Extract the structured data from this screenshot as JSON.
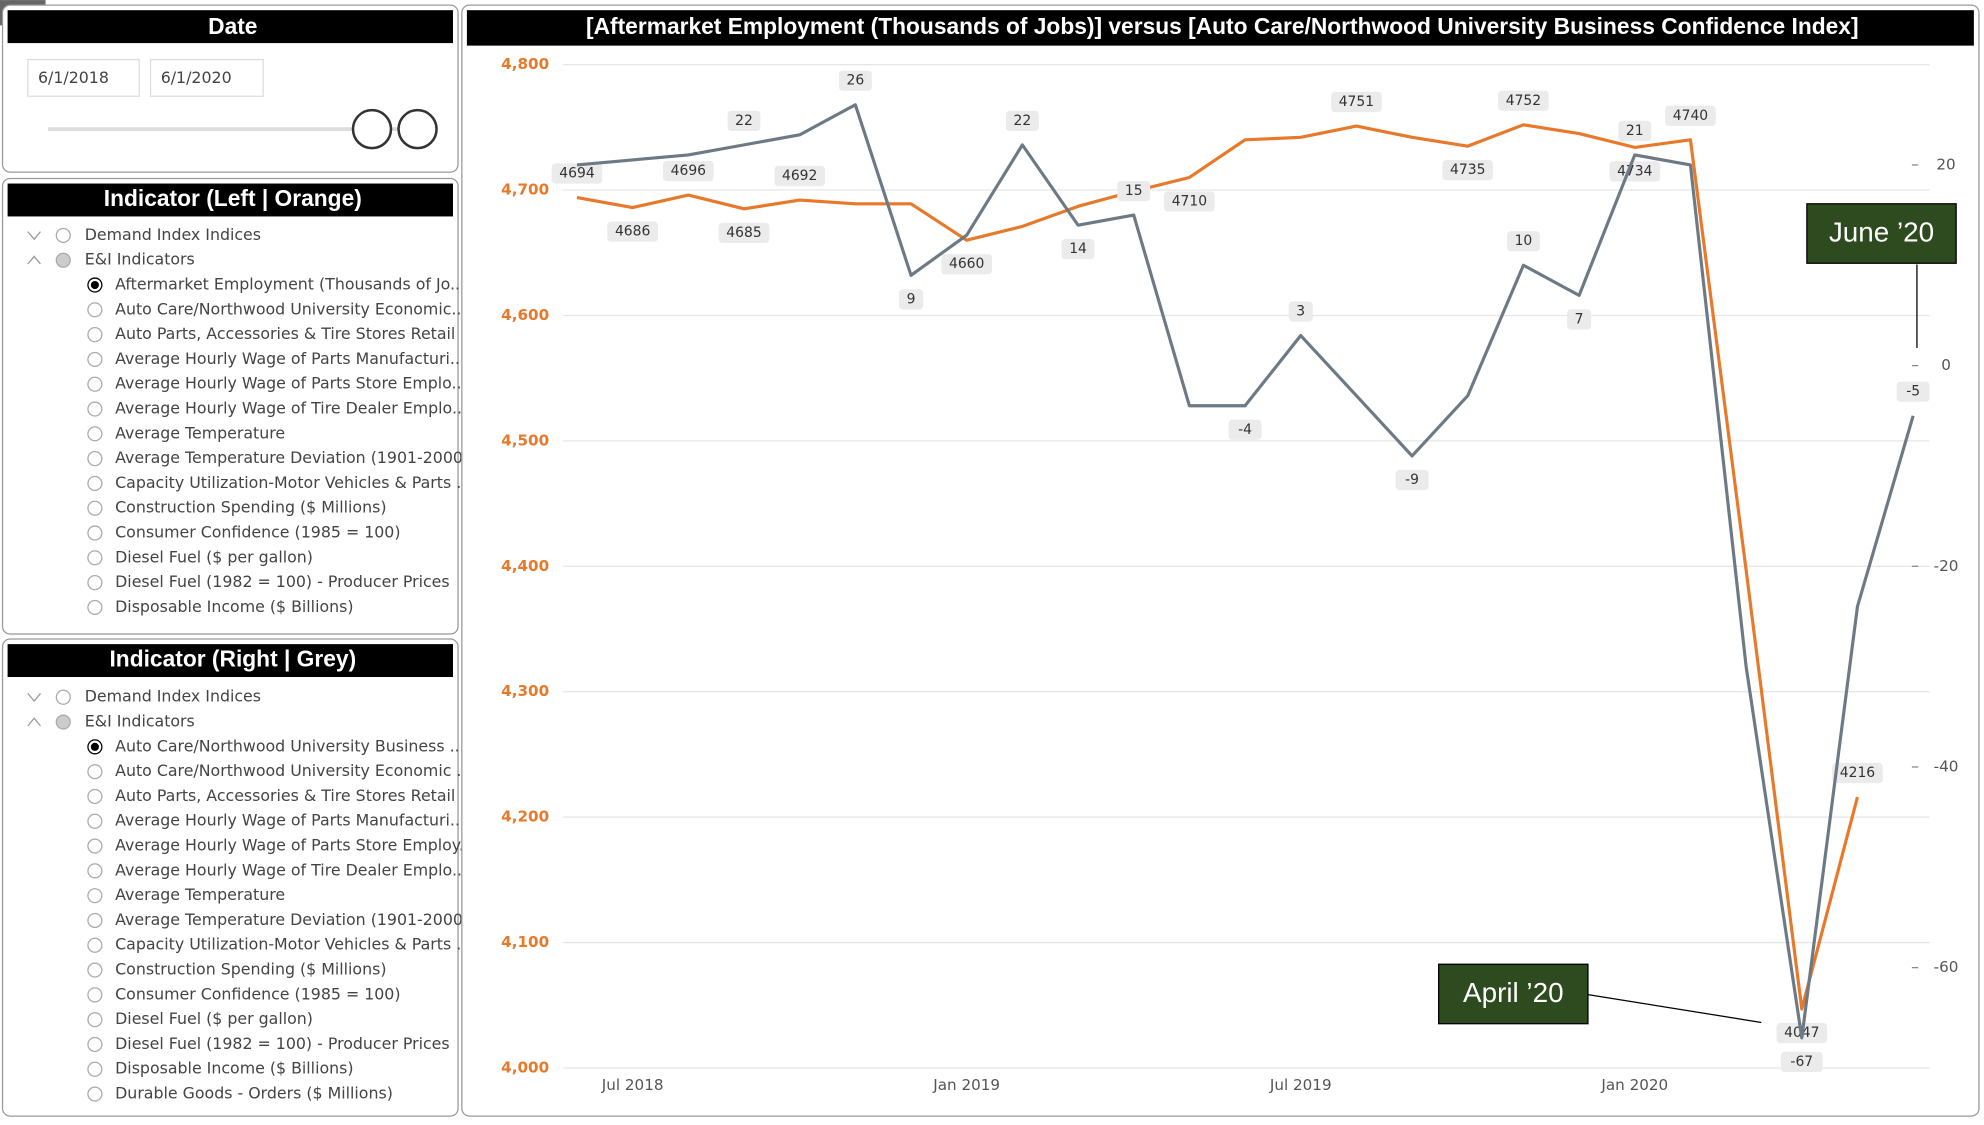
{
  "date_filter": {
    "title": "Date",
    "start": "6/1/2018",
    "end": "6/1/2020"
  },
  "left_panel": {
    "title": "Indicator (Left | Orange)",
    "groups": [
      "Demand Index Indices",
      "E&I Indicators"
    ],
    "selected": 0,
    "items": [
      "Aftermarket Employment (Thousands of Jo...",
      "Auto Care/Northwood University Economic...",
      "Auto Parts, Accessories & Tire Stores Retail ...",
      "Average Hourly Wage of Parts Manufacturi...",
      "Average Hourly Wage of Parts Store Emplo...",
      "Average Hourly Wage of Tire Dealer Emplo...",
      "Average Temperature",
      "Average Temperature Deviation (1901-2000...",
      "Capacity Utilization-Motor Vehicles & Parts ...",
      "Construction Spending ($ Millions)",
      "Consumer Confidence (1985 = 100)",
      "Diesel Fuel ($ per gallon)",
      "Diesel Fuel (1982 = 100) - Producer Prices",
      "Disposable Income ($ Billions)"
    ]
  },
  "right_panel": {
    "title": "Indicator (Right | Grey)",
    "groups": [
      "Demand Index Indices",
      "E&I Indicators"
    ],
    "selected": 0,
    "items": [
      "Auto Care/Northwood University Business ...",
      "Auto Care/Northwood University Economic ...",
      "Auto Parts, Accessories & Tire Stores Retail ...",
      "Average Hourly Wage of Parts Manufacturi...",
      "Average Hourly Wage of Parts Store Employ...",
      "Average Hourly Wage of Tire Dealer Emplo...",
      "Average Temperature",
      "Average Temperature Deviation (1901-2000...",
      "Capacity Utilization-Motor Vehicles & Parts ...",
      "Construction Spending ($ Millions)",
      "Consumer Confidence (1985 = 100)",
      "Diesel Fuel ($ per gallon)",
      "Diesel Fuel (1982 = 100) - Producer Prices",
      "Disposable Income ($ Billions)",
      "Durable Goods - Orders ($ Millions)"
    ]
  },
  "chart_data": {
    "type": "line",
    "title": "[Aftermarket Employment (Thousands of Jobs)]  versus  [Auto Care/Northwood University Business Confidence Index]",
    "x": [
      "2018-06",
      "2018-07",
      "2018-08",
      "2018-09",
      "2018-10",
      "2018-11",
      "2018-12",
      "2019-01",
      "2019-02",
      "2019-03",
      "2019-04",
      "2019-05",
      "2019-06",
      "2019-07",
      "2019-08",
      "2019-09",
      "2019-10",
      "2019-11",
      "2019-12",
      "2020-01",
      "2020-02",
      "2020-03",
      "2020-04",
      "2020-05",
      "2020-06"
    ],
    "xticks": [
      {
        "value": "2018-07",
        "label": "Jul 2018"
      },
      {
        "value": "2019-01",
        "label": "Jan 2019"
      },
      {
        "value": "2019-07",
        "label": "Jul 2019"
      },
      {
        "value": "2020-01",
        "label": "Jan 2020"
      }
    ],
    "ylim": [
      4000,
      4800
    ],
    "yticks": [
      {
        "value": 4000,
        "label": "4,000"
      },
      {
        "value": 4100,
        "label": "4,100"
      },
      {
        "value": 4200,
        "label": "4,200"
      },
      {
        "value": 4300,
        "label": "4,300"
      },
      {
        "value": 4400,
        "label": "4,400"
      },
      {
        "value": 4500,
        "label": "4,500"
      },
      {
        "value": 4600,
        "label": "4,600"
      },
      {
        "value": 4700,
        "label": "4,700"
      },
      {
        "value": 4800,
        "label": "4,800"
      }
    ],
    "y2lim": [
      -70,
      30
    ],
    "y2ticks": [
      -60,
      -40,
      -20,
      0,
      20
    ],
    "grid": true,
    "series": [
      {
        "color": "#e8792a",
        "values": [
          4694,
          4686,
          4696,
          4685,
          4692,
          4689,
          4689,
          4660,
          4671,
          4687,
          4699,
          4710,
          4740,
          4742,
          4751,
          4742,
          4735,
          4752,
          4745,
          4734,
          4740,
          4397,
          4047,
          4216,
          null
        ],
        "value_labels": [
          "4694",
          "4686",
          "4696",
          "4685",
          "4692",
          null,
          null,
          "4660",
          null,
          null,
          null,
          "4710",
          null,
          null,
          "4751",
          null,
          "4735",
          "4752",
          null,
          "4734",
          "4740",
          null,
          "4047",
          "4216",
          null
        ]
      },
      {
        "color": "#6d7a85",
        "axis": "y2",
        "values": [
          20,
          20.5,
          21,
          22,
          23,
          26,
          9,
          13,
          22,
          14,
          15,
          -4,
          -4,
          3,
          -3,
          -9,
          -3,
          10,
          7,
          21,
          20,
          -30,
          -67,
          -24,
          -5
        ],
        "value_labels": [
          null,
          null,
          null,
          "22",
          null,
          "26",
          "9",
          null,
          "22",
          "14",
          "15",
          null,
          "-4",
          "3",
          null,
          "-9",
          null,
          "10",
          "7",
          "21",
          null,
          null,
          "-67",
          null,
          "-5"
        ]
      }
    ],
    "annotations": [
      "June ’20",
      "April ’20"
    ]
  }
}
